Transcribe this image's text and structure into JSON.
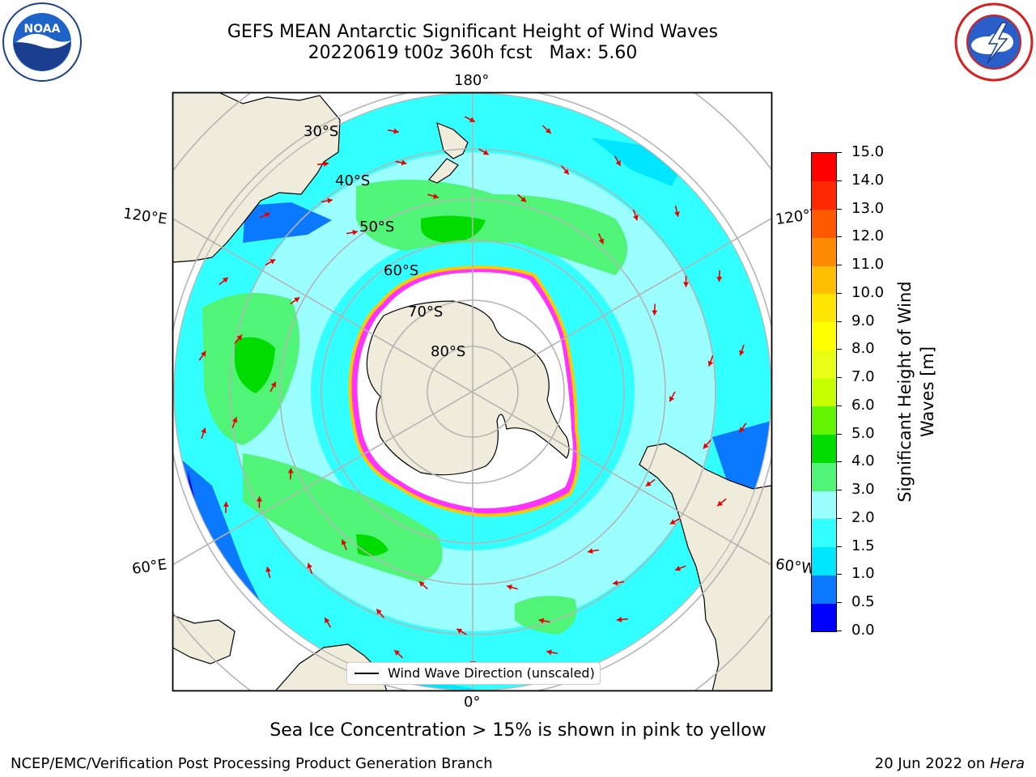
{
  "title": {
    "line1": "GEFS MEAN Antarctic Significant Height of Wind Waves",
    "line2": "20220619 t00z 360h fcst   Max: 5.60"
  },
  "logos": {
    "noaa": {
      "text": "NOAA",
      "ring_text": "NATIONAL OCEANIC AND ATMOSPHERIC ADMINISTRATION · U.S. DEPARTMENT OF COMMERCE"
    },
    "nws": {
      "ring_text": "NATIONAL WEATHER SERVICE"
    }
  },
  "map": {
    "projection": "south-polar-stereographic",
    "longitude_labels": [
      "180°",
      "120°E",
      "120°W",
      "60°E",
      "60°W",
      "0°"
    ],
    "latitude_labels": [
      "30°S",
      "40°S",
      "50°S",
      "60°S",
      "70°S",
      "80°S"
    ],
    "land_color": "#efecdb",
    "ice_color": "#ffffff",
    "gridline_color": "#b4b4b4"
  },
  "colorbar": {
    "label": "Significant Height of Wind Waves [m]",
    "label_line1": "Significant Height of Wind",
    "label_line2": "Waves [m]",
    "ticks": [
      "0.0",
      "0.5",
      "1.0",
      "1.5",
      "2.0",
      "3.0",
      "4.0",
      "5.0",
      "6.0",
      "7.0",
      "8.0",
      "9.0",
      "10.0",
      "11.0",
      "12.0",
      "13.0",
      "14.0",
      "15.0"
    ],
    "colors": [
      "#0000ff",
      "#0a78ff",
      "#00e6ff",
      "#32ffff",
      "#9bffff",
      "#50f578",
      "#00dc00",
      "#64f500",
      "#c8ff00",
      "#e6ff14",
      "#ffff00",
      "#ffe600",
      "#ffbe00",
      "#ff8c00",
      "#ff5a00",
      "#ff2800",
      "#ff0000"
    ]
  },
  "legend": {
    "label": "Wind Wave Direction (unscaled)"
  },
  "note": "Sea Ice Concentration > 15% is shown in pink to yellow",
  "footer": {
    "left": "NCEP/EMC/Verification Post Processing Product Generation Branch",
    "right_prefix": "20 Jun 2022 on ",
    "right_host": "Hera"
  }
}
